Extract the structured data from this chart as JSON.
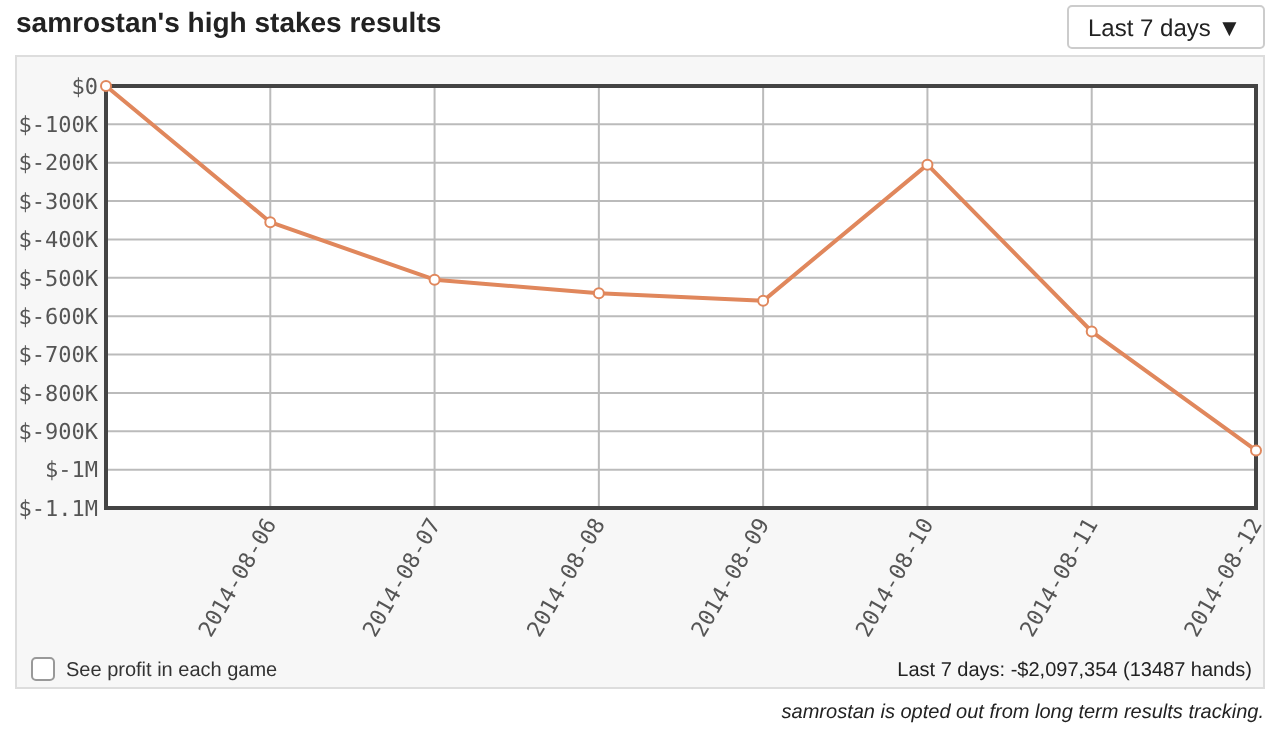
{
  "chart_data": {
    "type": "line",
    "title": "samrostan's high stakes results",
    "x": [
      "2014-08-05",
      "2014-08-06",
      "2014-08-07",
      "2014-08-08",
      "2014-08-09",
      "2014-08-10",
      "2014-08-11",
      "2014-08-12"
    ],
    "series": [
      {
        "color": "#e0875c",
        "values": [
          0,
          -355000,
          -505000,
          -540000,
          -560000,
          -205000,
          -640000,
          -950000
        ]
      }
    ],
    "xlim": [
      "2014-08-05",
      "2014-08-12"
    ],
    "xticks": [
      {
        "value": "2014-08-06",
        "label": "2014-08-06"
      },
      {
        "value": "2014-08-07",
        "label": "2014-08-07"
      },
      {
        "value": "2014-08-08",
        "label": "2014-08-08"
      },
      {
        "value": "2014-08-09",
        "label": "2014-08-09"
      },
      {
        "value": "2014-08-10",
        "label": "2014-08-10"
      },
      {
        "value": "2014-08-11",
        "label": "2014-08-11"
      },
      {
        "value": "2014-08-12",
        "label": "2014-08-12"
      }
    ],
    "ylim": [
      -1100000,
      0
    ],
    "yticks": [
      {
        "value": 0,
        "label": "$0"
      },
      {
        "value": -100000,
        "label": "$-100K"
      },
      {
        "value": -200000,
        "label": "$-200K"
      },
      {
        "value": -300000,
        "label": "$-300K"
      },
      {
        "value": -400000,
        "label": "$-400K"
      },
      {
        "value": -500000,
        "label": "$-500K"
      },
      {
        "value": -600000,
        "label": "$-600K"
      },
      {
        "value": -700000,
        "label": "$-700K"
      },
      {
        "value": -800000,
        "label": "$-800K"
      },
      {
        "value": -900000,
        "label": "$-900K"
      },
      {
        "value": -1000000,
        "label": "$-1M"
      },
      {
        "value": -1100000,
        "label": "$-1.1M"
      }
    ],
    "grid": true,
    "marker": "circle",
    "line_style": "solid",
    "annotations": [
      "Last 7 days ▼",
      "See profit in each game",
      "Last 7 days: -$2,097,354 (13487 hands)",
      "samrostan is opted out from long term results tracking."
    ]
  }
}
